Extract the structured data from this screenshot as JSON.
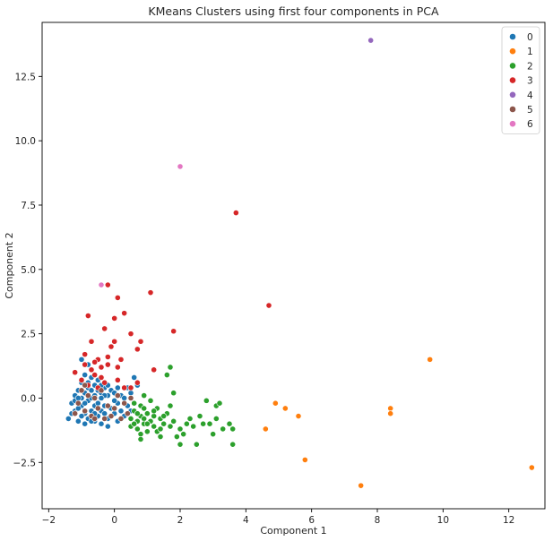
{
  "chart_data": {
    "type": "scatter",
    "title": "KMeans Clusters using first four components in PCA",
    "xlabel": "Component 1",
    "ylabel": "Component 2",
    "xlim": [
      -2.2,
      13.1
    ],
    "ylim": [
      -4.3,
      14.6
    ],
    "xticks": [
      -2,
      0,
      2,
      4,
      6,
      8,
      10,
      12
    ],
    "yticks": [
      -2.5,
      0.0,
      2.5,
      5.0,
      7.5,
      10.0,
      12.5
    ],
    "xtick_labels": [
      "−2",
      "0",
      "2",
      "4",
      "6",
      "8",
      "10",
      "12"
    ],
    "ytick_labels": [
      "−2.5",
      "0.0",
      "2.5",
      "5.0",
      "7.5",
      "10.0",
      "12.5"
    ],
    "grid": false,
    "legend_position": "top-right",
    "series": [
      {
        "name": "0",
        "color": "#1f77b4",
        "points": [
          [
            -1.4,
            -0.8
          ],
          [
            -1.3,
            -0.6
          ],
          [
            -1.3,
            -0.2
          ],
          [
            -1.2,
            0.1
          ],
          [
            -1.2,
            -0.5
          ],
          [
            -1.1,
            -0.9
          ],
          [
            -1.1,
            0.3
          ],
          [
            -1.0,
            1.5
          ],
          [
            -1.0,
            0.6
          ],
          [
            -1.0,
            -0.3
          ],
          [
            -0.9,
            0.9
          ],
          [
            -0.9,
            0.2
          ],
          [
            -0.9,
            -0.6
          ],
          [
            -0.8,
            1.3
          ],
          [
            -0.8,
            0.4
          ],
          [
            -0.8,
            -0.1
          ],
          [
            -0.8,
            -0.8
          ],
          [
            -0.7,
            0.8
          ],
          [
            -0.7,
            0.0
          ],
          [
            -0.7,
            -0.5
          ],
          [
            -0.6,
            0.5
          ],
          [
            -0.6,
            -0.3
          ],
          [
            -0.6,
            -0.9
          ],
          [
            -0.5,
            0.3
          ],
          [
            -0.5,
            -0.2
          ],
          [
            -0.5,
            -0.7
          ],
          [
            -0.4,
            0.2
          ],
          [
            -0.4,
            -0.5
          ],
          [
            -0.4,
            -1.0
          ],
          [
            -0.3,
            0.4
          ],
          [
            -0.3,
            -0.3
          ],
          [
            -0.2,
            0.1
          ],
          [
            -0.2,
            -0.8
          ],
          [
            -0.2,
            -1.1
          ],
          [
            -0.1,
            0.3
          ],
          [
            -0.1,
            -0.4
          ],
          [
            0.0,
            0.2
          ],
          [
            0.0,
            -0.6
          ],
          [
            0.1,
            -0.2
          ],
          [
            0.1,
            -0.9
          ],
          [
            0.2,
            0.1
          ],
          [
            0.2,
            -0.5
          ],
          [
            0.3,
            0.0
          ],
          [
            0.3,
            -0.7
          ],
          [
            0.4,
            0.4
          ],
          [
            0.4,
            -0.3
          ],
          [
            0.5,
            0.2
          ],
          [
            0.5,
            -0.5
          ],
          [
            0.6,
            0.8
          ],
          [
            0.7,
            0.5
          ],
          [
            -1.1,
            -0.4
          ],
          [
            -1.0,
            0.0
          ],
          [
            -0.9,
            -0.2
          ],
          [
            -0.8,
            0.6
          ],
          [
            -0.7,
            0.3
          ],
          [
            -0.6,
            0.1
          ],
          [
            -0.5,
            0.7
          ],
          [
            -0.4,
            0.5
          ],
          [
            -0.3,
            0.1
          ],
          [
            -0.2,
            0.5
          ],
          [
            -1.2,
            -0.1
          ],
          [
            -1.0,
            -0.7
          ],
          [
            -0.9,
            -1.0
          ],
          [
            -0.6,
            -0.6
          ],
          [
            -0.3,
            -0.6
          ],
          [
            0.0,
            -0.1
          ],
          [
            0.1,
            0.4
          ],
          [
            -1.1,
            0.0
          ],
          [
            -0.7,
            -0.9
          ],
          [
            -0.4,
            0.0
          ]
        ]
      },
      {
        "name": "1",
        "color": "#ff7f0e",
        "points": [
          [
            4.6,
            -1.2
          ],
          [
            4.9,
            -0.2
          ],
          [
            5.2,
            -0.4
          ],
          [
            5.6,
            -0.7
          ],
          [
            5.8,
            -2.4
          ],
          [
            7.5,
            -3.4
          ],
          [
            8.4,
            -0.4
          ],
          [
            8.4,
            -0.6
          ],
          [
            9.6,
            1.5
          ],
          [
            12.7,
            -2.7
          ]
        ]
      },
      {
        "name": "2",
        "color": "#2ca02c",
        "points": [
          [
            0.5,
            -0.8
          ],
          [
            0.5,
            -1.1
          ],
          [
            0.6,
            -0.5
          ],
          [
            0.7,
            -0.9
          ],
          [
            0.7,
            -1.2
          ],
          [
            0.8,
            -0.3
          ],
          [
            0.8,
            -0.7
          ],
          [
            0.8,
            -1.4
          ],
          [
            0.8,
            -1.6
          ],
          [
            0.9,
            0.1
          ],
          [
            0.9,
            -0.8
          ],
          [
            0.9,
            -1.0
          ],
          [
            1.0,
            -0.6
          ],
          [
            1.0,
            -1.3
          ],
          [
            1.1,
            -0.1
          ],
          [
            1.1,
            -0.9
          ],
          [
            1.2,
            -0.7
          ],
          [
            1.2,
            -1.1
          ],
          [
            1.3,
            -0.4
          ],
          [
            1.3,
            -1.3
          ],
          [
            1.4,
            -0.8
          ],
          [
            1.4,
            -1.5
          ],
          [
            1.5,
            -1.0
          ],
          [
            1.6,
            0.9
          ],
          [
            1.6,
            -0.6
          ],
          [
            1.7,
            1.2
          ],
          [
            1.7,
            -0.3
          ],
          [
            1.7,
            -1.1
          ],
          [
            1.8,
            -0.9
          ],
          [
            1.8,
            0.2
          ],
          [
            1.9,
            -1.5
          ],
          [
            2.0,
            -1.2
          ],
          [
            2.0,
            -1.8
          ],
          [
            2.1,
            -1.4
          ],
          [
            2.2,
            -1.0
          ],
          [
            2.3,
            -0.8
          ],
          [
            2.4,
            -1.1
          ],
          [
            2.5,
            -1.8
          ],
          [
            2.6,
            -0.7
          ],
          [
            2.7,
            -1.0
          ],
          [
            2.8,
            -0.1
          ],
          [
            2.9,
            -1.0
          ],
          [
            3.0,
            -1.4
          ],
          [
            3.1,
            -0.8
          ],
          [
            3.1,
            -0.3
          ],
          [
            3.2,
            -0.2
          ],
          [
            3.3,
            -1.2
          ],
          [
            3.5,
            -1.0
          ],
          [
            3.6,
            -1.2
          ],
          [
            3.6,
            -1.8
          ],
          [
            0.6,
            -0.2
          ],
          [
            0.9,
            -0.4
          ],
          [
            1.0,
            -1.0
          ],
          [
            1.2,
            -0.5
          ],
          [
            1.5,
            -0.7
          ],
          [
            0.7,
            -0.6
          ],
          [
            1.4,
            -1.2
          ],
          [
            0.6,
            -1.0
          ]
        ]
      },
      {
        "name": "3",
        "color": "#d62728",
        "points": [
          [
            -1.2,
            1.0
          ],
          [
            -1.0,
            0.7
          ],
          [
            -0.9,
            1.7
          ],
          [
            -0.8,
            3.2
          ],
          [
            -0.8,
            0.5
          ],
          [
            -0.7,
            1.1
          ],
          [
            -0.7,
            2.2
          ],
          [
            -0.6,
            0.9
          ],
          [
            -0.5,
            1.5
          ],
          [
            -0.5,
            0.4
          ],
          [
            -0.4,
            1.2
          ],
          [
            -0.3,
            2.7
          ],
          [
            -0.3,
            0.6
          ],
          [
            -0.2,
            1.3
          ],
          [
            -0.2,
            4.4
          ],
          [
            -0.1,
            2.0
          ],
          [
            0.0,
            3.1
          ],
          [
            0.0,
            2.2
          ],
          [
            0.1,
            1.2
          ],
          [
            0.1,
            0.7
          ],
          [
            0.1,
            3.9
          ],
          [
            0.2,
            1.5
          ],
          [
            0.3,
            3.3
          ],
          [
            0.3,
            0.4
          ],
          [
            0.5,
            2.5
          ],
          [
            0.5,
            0.4
          ],
          [
            0.7,
            1.9
          ],
          [
            0.7,
            0.6
          ],
          [
            0.8,
            2.2
          ],
          [
            1.1,
            4.1
          ],
          [
            1.2,
            1.1
          ],
          [
            1.8,
            2.6
          ],
          [
            3.7,
            7.2
          ],
          [
            4.7,
            3.6
          ],
          [
            -0.6,
            1.4
          ],
          [
            -0.4,
            0.8
          ],
          [
            -0.9,
            1.3
          ],
          [
            -0.2,
            1.6
          ]
        ]
      },
      {
        "name": "4",
        "color": "#9467bd",
        "points": [
          [
            7.8,
            13.9
          ]
        ]
      },
      {
        "name": "5",
        "color": "#8c564b",
        "points": [
          [
            -1.2,
            -0.6
          ],
          [
            -1.1,
            -0.2
          ],
          [
            -1.0,
            0.3
          ],
          [
            -0.9,
            -0.5
          ],
          [
            -0.8,
            0.1
          ],
          [
            -0.7,
            -0.7
          ],
          [
            -0.6,
            0.0
          ],
          [
            -0.5,
            -0.4
          ],
          [
            -0.4,
            0.3
          ],
          [
            -0.3,
            -0.8
          ],
          [
            -0.2,
            -0.3
          ],
          [
            -0.1,
            -0.7
          ],
          [
            0.0,
            -0.4
          ],
          [
            0.1,
            0.1
          ],
          [
            0.2,
            -0.8
          ],
          [
            0.3,
            -0.2
          ],
          [
            0.4,
            -0.6
          ],
          [
            -0.9,
            0.5
          ],
          [
            -0.6,
            -0.8
          ],
          [
            0.5,
            0.0
          ]
        ]
      },
      {
        "name": "6",
        "color": "#e377c2",
        "points": [
          [
            -0.4,
            4.4
          ],
          [
            2.0,
            9.0
          ]
        ]
      }
    ]
  }
}
